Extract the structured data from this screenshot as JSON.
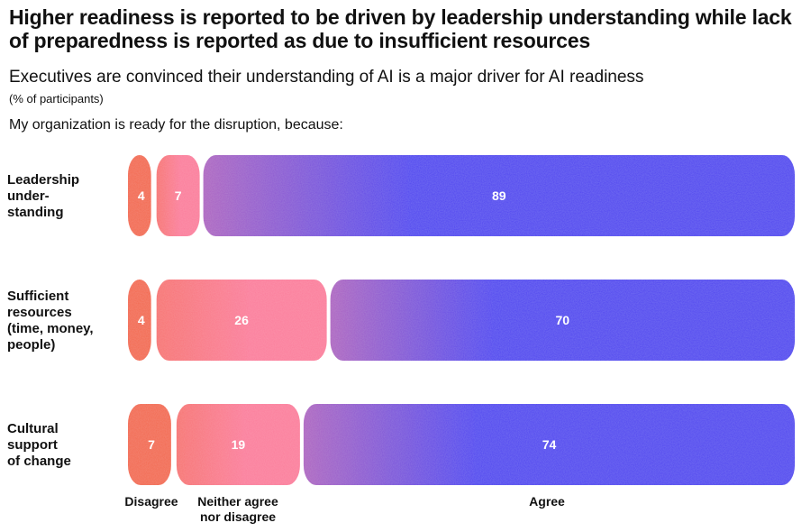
{
  "headline": "Higher readiness is reported to be driven by leadership understanding while lack of preparedness is reported as due to insufficient resources",
  "subtitle": "Executives are convinced their understanding of AI is a major driver for AI readiness",
  "unit_note": "(% of participants)",
  "question": "My organization is ready for the disruption, because:",
  "colors": {
    "disagree": "#f36a4f",
    "neither": "#fb7e9c",
    "agree": "#5044f0",
    "label_on_bar": "#ffffff"
  },
  "chart_data": {
    "type": "bar",
    "orientation": "horizontal",
    "stacked": true,
    "categories": [
      [
        "Leadership",
        "under-",
        "standing"
      ],
      [
        "Sufficient",
        "resources",
        "(time, money,",
        "people)"
      ],
      [
        "Cultural",
        "support",
        "of change"
      ]
    ],
    "series": [
      {
        "name": "Disagree",
        "values": [
          4,
          4,
          7
        ]
      },
      {
        "name": "Neither agree nor disagree",
        "values": [
          7,
          26,
          19
        ]
      },
      {
        "name": "Agree",
        "values": [
          89,
          70,
          74
        ]
      }
    ],
    "legend_labels": [
      [
        "Disagree"
      ],
      [
        "Neither agree",
        "nor disagree"
      ],
      [
        "Agree"
      ]
    ],
    "xlim": [
      0,
      100
    ],
    "grid": false,
    "legend_position": "bottom"
  }
}
